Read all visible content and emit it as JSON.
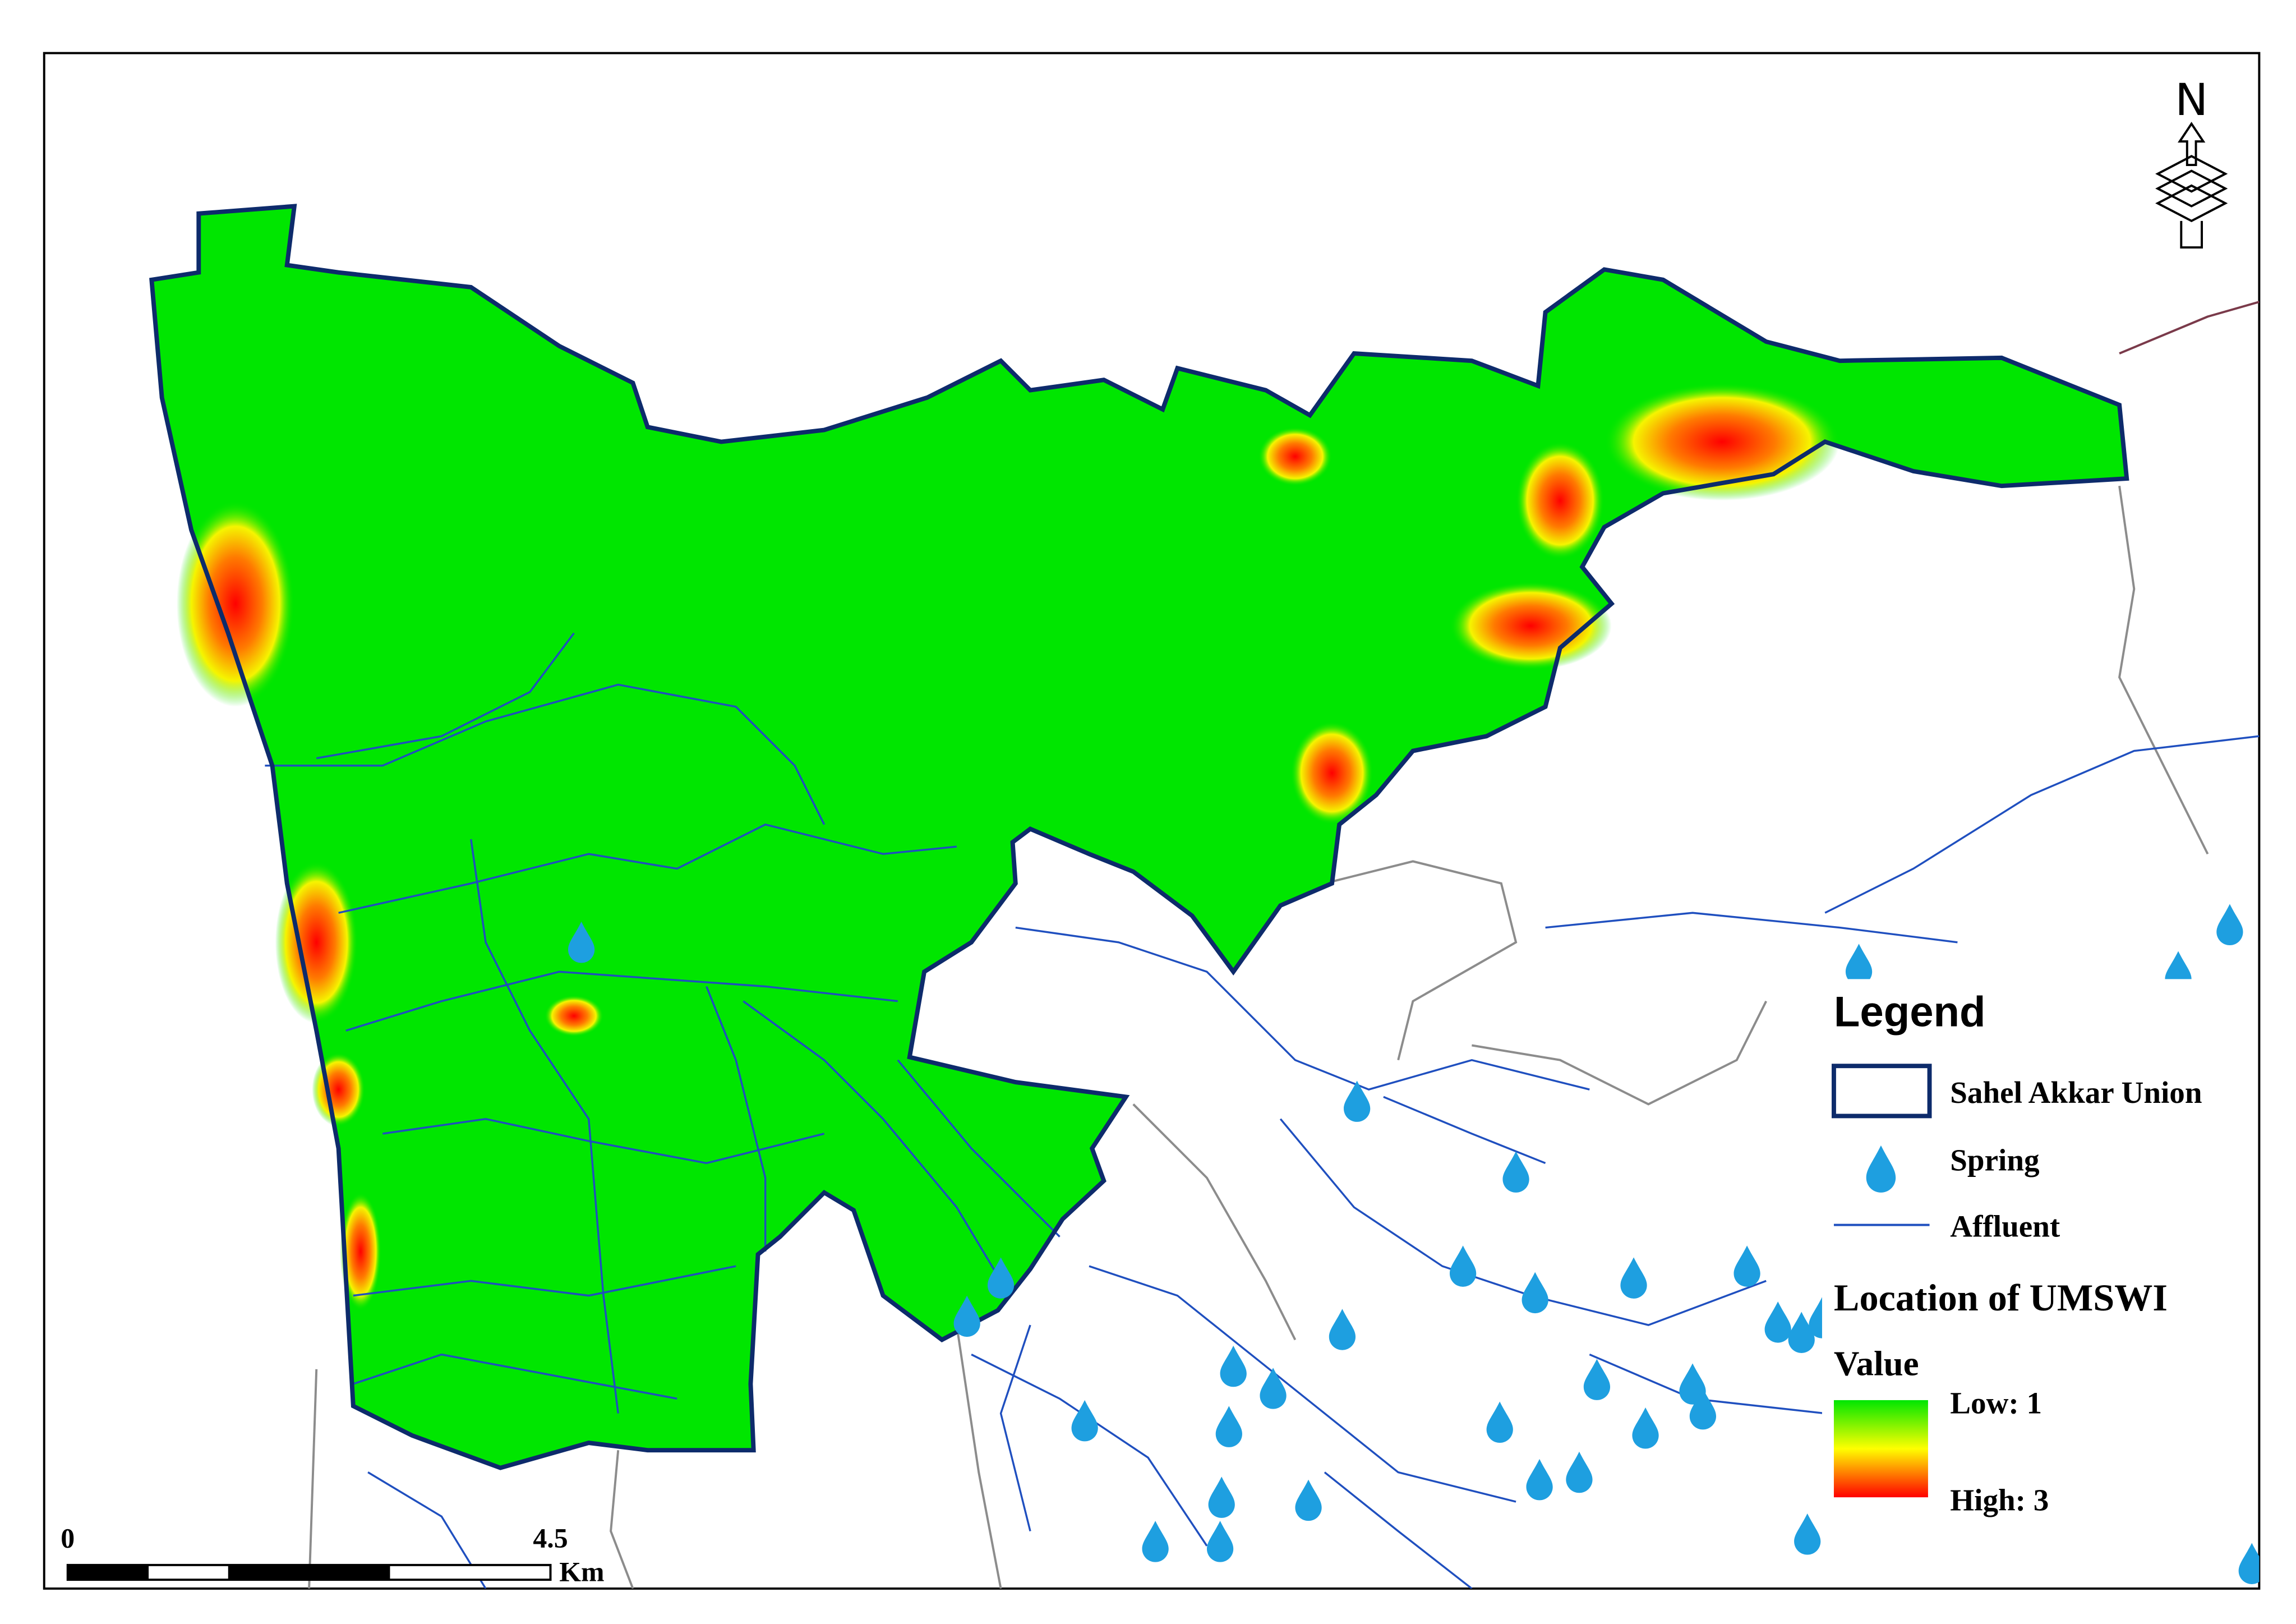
{
  "north_arrow": "N",
  "legend": {
    "title": "Legend",
    "items": [
      {
        "label": "Sahel Akkar Union"
      },
      {
        "label": "Spring"
      },
      {
        "label": "Affluent"
      }
    ],
    "raster_title": "Location of UMSWI",
    "value_label": "Value",
    "low": "Low: 1",
    "high": "High: 3"
  },
  "scale_bar": {
    "start": "0",
    "mid": "4.5",
    "unit": "Km"
  }
}
